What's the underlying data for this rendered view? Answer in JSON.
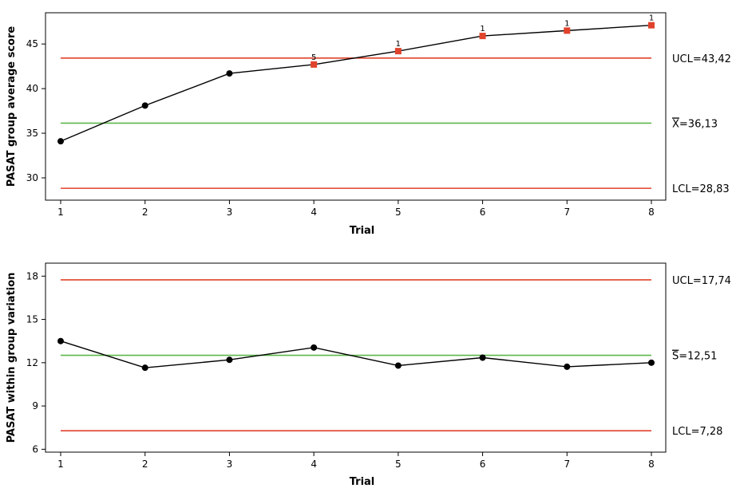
{
  "chart_data": [
    {
      "type": "line",
      "chart_kind": "Xbar control chart",
      "xlabel": "Trial",
      "ylabel": "PASAT group average score",
      "x": [
        1,
        2,
        3,
        4,
        5,
        6,
        7,
        8
      ],
      "xticks": [
        "1",
        "2",
        "3",
        "4",
        "5",
        "6",
        "7",
        "8"
      ],
      "yticks": [
        "30",
        "35",
        "40",
        "45"
      ],
      "ylim": [
        27.5,
        48.5
      ],
      "series": [
        {
          "values": [
            34.1,
            38.1,
            41.7,
            42.7,
            44.2,
            45.9,
            46.5,
            47.1
          ]
        }
      ],
      "out_of_control": [
        false,
        false,
        false,
        true,
        true,
        true,
        true,
        true
      ],
      "point_rule_labels": [
        "",
        "",
        "",
        "5",
        "1",
        "1",
        "1",
        "1"
      ],
      "limits": {
        "ucl": {
          "value": 43.42,
          "label": "UCL=43,42",
          "color": "#e0422c"
        },
        "center": {
          "value": 36.13,
          "label_symbol": "X",
          "label_value": "=36,13",
          "color": "#5cb84a"
        },
        "lcl": {
          "value": 28.83,
          "label": "LCL=28,83",
          "color": "#e0422c"
        }
      },
      "colors": {
        "line": "#000000",
        "normal_point": "#000000",
        "flagged_point": "#e0422c"
      },
      "grid": false
    },
    {
      "type": "line",
      "chart_kind": "S control chart",
      "xlabel": "Trial",
      "ylabel": "PASAT within group variation",
      "x": [
        1,
        2,
        3,
        4,
        5,
        6,
        7,
        8
      ],
      "xticks": [
        "1",
        "2",
        "3",
        "4",
        "5",
        "6",
        "7",
        "8"
      ],
      "yticks": [
        "6",
        "9",
        "12",
        "15",
        "18"
      ],
      "ylim": [
        5.8,
        18.9
      ],
      "series": [
        {
          "values": [
            13.5,
            11.65,
            12.2,
            13.05,
            11.8,
            12.35,
            11.72,
            12.0
          ]
        }
      ],
      "limits": {
        "ucl": {
          "value": 17.74,
          "label": "UCL=17,74",
          "color": "#e0422c"
        },
        "center": {
          "value": 12.51,
          "label_symbol": "S",
          "label_value": "=12,51",
          "color": "#5cb84a"
        },
        "lcl": {
          "value": 7.28,
          "label": "LCL=7,28",
          "color": "#e0422c"
        }
      },
      "colors": {
        "line": "#000000",
        "normal_point": "#000000"
      },
      "grid": false
    }
  ]
}
